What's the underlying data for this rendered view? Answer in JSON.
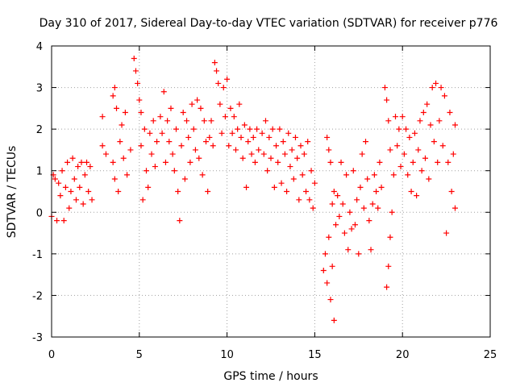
{
  "chart_data": {
    "type": "scatter",
    "title": "Day 310 of 2017, Sidereal Day-to-day VTEC variation (SDTVAR) for receiver p776",
    "xlabel": "GPS time / hours",
    "ylabel": "SDTVAR / TECUs",
    "xlim": [
      0,
      25
    ],
    "ylim": [
      -3,
      4
    ],
    "xticks": [
      0,
      5,
      10,
      15,
      20,
      25
    ],
    "yticks": [
      -3,
      -2,
      -1,
      0,
      1,
      2,
      3,
      4
    ],
    "xtick_labels": [
      "0",
      "5",
      "10",
      "15",
      "20",
      "25"
    ],
    "ytick_labels": [
      "-3",
      "-2",
      "-1",
      "0",
      "1",
      "2",
      "3",
      "4"
    ],
    "grid": true,
    "marker": "+",
    "color": "#ff0000",
    "series": [
      {
        "name": "SDTVAR",
        "points": [
          [
            0.0,
            -0.1
          ],
          [
            0.1,
            0.9
          ],
          [
            0.2,
            0.8
          ],
          [
            0.3,
            -0.2
          ],
          [
            0.4,
            0.7
          ],
          [
            0.5,
            0.4
          ],
          [
            0.6,
            1.0
          ],
          [
            0.7,
            -0.2
          ],
          [
            0.8,
            0.6
          ],
          [
            0.9,
            1.2
          ],
          [
            1.0,
            0.1
          ],
          [
            1.1,
            0.5
          ],
          [
            1.2,
            1.3
          ],
          [
            1.3,
            0.8
          ],
          [
            1.4,
            0.3
          ],
          [
            1.5,
            1.1
          ],
          [
            1.6,
            0.6
          ],
          [
            1.7,
            1.2
          ],
          [
            1.8,
            0.2
          ],
          [
            1.9,
            0.9
          ],
          [
            2.0,
            1.2
          ],
          [
            2.1,
            0.5
          ],
          [
            2.2,
            1.1
          ],
          [
            2.3,
            0.3
          ],
          [
            2.9,
            2.3
          ],
          [
            2.9,
            1.6
          ],
          [
            3.1,
            1.4
          ],
          [
            3.5,
            2.8
          ],
          [
            3.5,
            1.2
          ],
          [
            3.6,
            0.8
          ],
          [
            3.6,
            3.0
          ],
          [
            3.7,
            2.5
          ],
          [
            3.8,
            0.5
          ],
          [
            3.9,
            1.7
          ],
          [
            4.0,
            2.1
          ],
          [
            4.1,
            1.3
          ],
          [
            4.2,
            2.4
          ],
          [
            4.3,
            0.9
          ],
          [
            4.5,
            1.5
          ],
          [
            4.7,
            3.7
          ],
          [
            4.8,
            3.4
          ],
          [
            4.9,
            3.1
          ],
          [
            5.0,
            2.7
          ],
          [
            5.1,
            2.4
          ],
          [
            5.1,
            1.6
          ],
          [
            5.2,
            0.3
          ],
          [
            5.3,
            2.0
          ],
          [
            5.4,
            1.0
          ],
          [
            5.5,
            0.6
          ],
          [
            5.6,
            1.9
          ],
          [
            5.7,
            1.4
          ],
          [
            5.8,
            2.2
          ],
          [
            5.9,
            1.1
          ],
          [
            6.0,
            1.7
          ],
          [
            6.2,
            2.3
          ],
          [
            6.3,
            1.9
          ],
          [
            6.4,
            2.9
          ],
          [
            6.5,
            1.2
          ],
          [
            6.6,
            2.2
          ],
          [
            6.7,
            1.7
          ],
          [
            6.8,
            2.5
          ],
          [
            6.9,
            1.4
          ],
          [
            7.0,
            1.0
          ],
          [
            7.1,
            2.0
          ],
          [
            7.2,
            0.5
          ],
          [
            7.3,
            -0.2
          ],
          [
            7.4,
            1.6
          ],
          [
            7.5,
            2.4
          ],
          [
            7.6,
            0.8
          ],
          [
            7.7,
            2.2
          ],
          [
            7.8,
            1.8
          ],
          [
            7.9,
            1.2
          ],
          [
            8.0,
            2.6
          ],
          [
            8.1,
            2.0
          ],
          [
            8.2,
            1.5
          ],
          [
            8.3,
            2.7
          ],
          [
            8.4,
            1.3
          ],
          [
            8.5,
            2.5
          ],
          [
            8.6,
            0.9
          ],
          [
            8.7,
            2.2
          ],
          [
            8.8,
            1.7
          ],
          [
            8.9,
            0.5
          ],
          [
            9.0,
            1.8
          ],
          [
            9.1,
            2.2
          ],
          [
            9.2,
            1.6
          ],
          [
            9.3,
            3.6
          ],
          [
            9.4,
            3.4
          ],
          [
            9.5,
            3.1
          ],
          [
            9.6,
            2.6
          ],
          [
            9.7,
            1.9
          ],
          [
            9.8,
            3.0
          ],
          [
            9.9,
            2.3
          ],
          [
            10.0,
            3.2
          ],
          [
            10.1,
            1.6
          ],
          [
            10.2,
            2.5
          ],
          [
            10.3,
            1.9
          ],
          [
            10.4,
            2.3
          ],
          [
            10.5,
            1.5
          ],
          [
            10.6,
            2.0
          ],
          [
            10.7,
            2.6
          ],
          [
            10.8,
            1.8
          ],
          [
            10.9,
            1.3
          ],
          [
            11.0,
            2.1
          ],
          [
            11.1,
            0.6
          ],
          [
            11.2,
            1.7
          ],
          [
            11.3,
            2.0
          ],
          [
            11.4,
            1.4
          ],
          [
            11.5,
            1.8
          ],
          [
            11.6,
            1.2
          ],
          [
            11.7,
            2.0
          ],
          [
            11.8,
            1.5
          ],
          [
            12.0,
            1.9
          ],
          [
            12.1,
            1.4
          ],
          [
            12.2,
            2.2
          ],
          [
            12.3,
            1.0
          ],
          [
            12.4,
            1.8
          ],
          [
            12.5,
            1.3
          ],
          [
            12.6,
            2.0
          ],
          [
            12.7,
            0.6
          ],
          [
            12.8,
            1.6
          ],
          [
            12.9,
            1.2
          ],
          [
            13.0,
            2.0
          ],
          [
            13.1,
            0.7
          ],
          [
            13.2,
            1.7
          ],
          [
            13.3,
            1.4
          ],
          [
            13.4,
            0.5
          ],
          [
            13.5,
            1.9
          ],
          [
            13.6,
            1.1
          ],
          [
            13.7,
            1.5
          ],
          [
            13.8,
            0.8
          ],
          [
            13.9,
            1.8
          ],
          [
            14.0,
            1.3
          ],
          [
            14.1,
            0.3
          ],
          [
            14.2,
            1.6
          ],
          [
            14.3,
            0.9
          ],
          [
            14.4,
            1.4
          ],
          [
            14.5,
            0.5
          ],
          [
            14.6,
            1.7
          ],
          [
            14.7,
            0.3
          ],
          [
            14.8,
            1.0
          ],
          [
            14.9,
            0.1
          ],
          [
            15.0,
            0.7
          ],
          [
            15.5,
            -1.4
          ],
          [
            15.6,
            -1.0
          ],
          [
            15.7,
            -1.7
          ],
          [
            15.7,
            1.8
          ],
          [
            15.8,
            1.5
          ],
          [
            15.8,
            -0.6
          ],
          [
            15.9,
            -2.1
          ],
          [
            15.9,
            1.2
          ],
          [
            16.0,
            0.2
          ],
          [
            16.0,
            -1.3
          ],
          [
            16.1,
            -2.6
          ],
          [
            16.1,
            0.5
          ],
          [
            16.2,
            -0.3
          ],
          [
            16.3,
            0.4
          ],
          [
            16.4,
            -0.1
          ],
          [
            16.5,
            1.2
          ],
          [
            16.6,
            0.2
          ],
          [
            16.7,
            -0.5
          ],
          [
            16.8,
            0.9
          ],
          [
            16.9,
            -0.9
          ],
          [
            17.0,
            0.0
          ],
          [
            17.1,
            -0.4
          ],
          [
            17.2,
            1.0
          ],
          [
            17.3,
            -0.3
          ],
          [
            17.4,
            0.3
          ],
          [
            17.5,
            -1.0
          ],
          [
            17.6,
            0.6
          ],
          [
            17.7,
            1.4
          ],
          [
            17.8,
            0.1
          ],
          [
            17.9,
            1.7
          ],
          [
            18.0,
            0.8
          ],
          [
            18.1,
            -0.2
          ],
          [
            18.2,
            -0.9
          ],
          [
            18.3,
            0.2
          ],
          [
            18.4,
            0.9
          ],
          [
            18.5,
            0.5
          ],
          [
            18.6,
            0.1
          ],
          [
            18.7,
            1.2
          ],
          [
            18.8,
            0.6
          ],
          [
            19.0,
            3.0
          ],
          [
            19.1,
            -1.8
          ],
          [
            19.1,
            2.7
          ],
          [
            19.2,
            -1.3
          ],
          [
            19.2,
            2.2
          ],
          [
            19.3,
            -0.6
          ],
          [
            19.3,
            1.5
          ],
          [
            19.4,
            0.0
          ],
          [
            19.5,
            0.9
          ],
          [
            19.6,
            2.3
          ],
          [
            19.7,
            1.6
          ],
          [
            19.8,
            2.0
          ],
          [
            19.9,
            1.1
          ],
          [
            20.0,
            2.3
          ],
          [
            20.1,
            1.4
          ],
          [
            20.2,
            2.0
          ],
          [
            20.3,
            0.9
          ],
          [
            20.4,
            1.8
          ],
          [
            20.5,
            0.5
          ],
          [
            20.6,
            1.2
          ],
          [
            20.7,
            1.9
          ],
          [
            20.8,
            0.4
          ],
          [
            20.9,
            1.5
          ],
          [
            21.0,
            2.2
          ],
          [
            21.1,
            1.0
          ],
          [
            21.2,
            2.4
          ],
          [
            21.3,
            1.3
          ],
          [
            21.4,
            2.6
          ],
          [
            21.5,
            0.8
          ],
          [
            21.6,
            2.1
          ],
          [
            21.7,
            3.0
          ],
          [
            21.8,
            1.7
          ],
          [
            21.9,
            3.1
          ],
          [
            22.0,
            1.2
          ],
          [
            22.1,
            2.2
          ],
          [
            22.2,
            3.0
          ],
          [
            22.3,
            1.6
          ],
          [
            22.4,
            2.8
          ],
          [
            22.5,
            -0.5
          ],
          [
            22.6,
            1.2
          ],
          [
            22.7,
            2.4
          ],
          [
            22.8,
            0.5
          ],
          [
            22.9,
            1.4
          ],
          [
            23.0,
            2.1
          ],
          [
            23.0,
            0.1
          ]
        ]
      }
    ]
  }
}
